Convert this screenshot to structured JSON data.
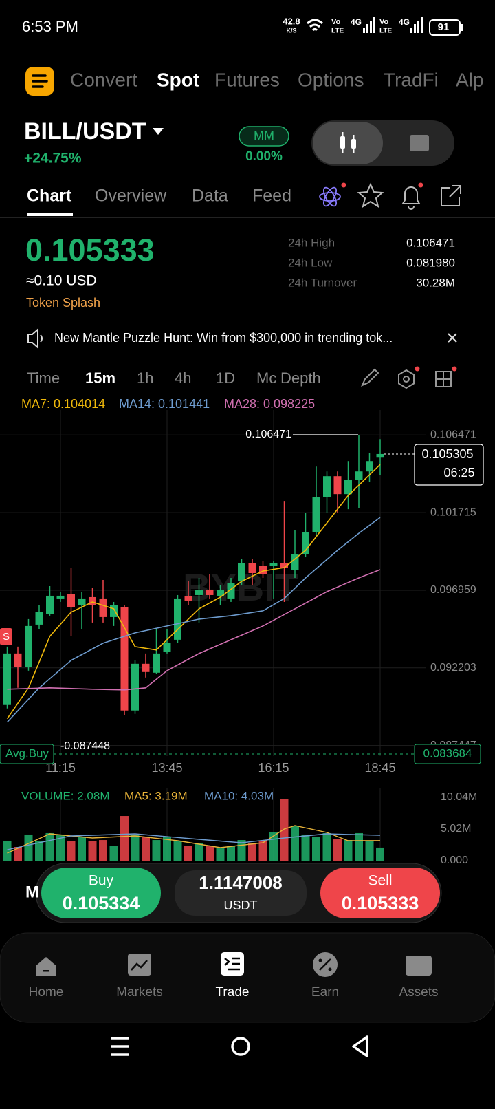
{
  "status_bar": {
    "time": "6:53 PM",
    "net_speed": "42.8",
    "net_unit": "K/S",
    "battery": "91",
    "sims": [
      {
        "vo": "Vo",
        "lte": "LTE",
        "net": "4G"
      },
      {
        "vo": "Vo",
        "lte": "LTE",
        "net": "4G"
      }
    ]
  },
  "top_tabs": [
    "Convert",
    "Spot",
    "Futures",
    "Options",
    "TradFi",
    "Alp"
  ],
  "active_tab": 1,
  "pair": {
    "symbol": "BILL/USDT",
    "change": "+24.75%",
    "badge": "MM",
    "badge_value": "0.00%"
  },
  "sub_tabs": [
    "Chart",
    "Overview",
    "Data",
    "Feed"
  ],
  "price": {
    "last": "0.105333",
    "usd": "≈0.10 USD",
    "tag": "Token Splash"
  },
  "stats": [
    {
      "label": "24h High",
      "value": "0.106471"
    },
    {
      "label": "24h Low",
      "value": "0.081980"
    },
    {
      "label": "24h Turnover",
      "value": "30.28M"
    }
  ],
  "announcement": "New Mantle Puzzle Hunt: Win from $300,000 in trending tok...",
  "intervals": [
    "Time",
    "15m",
    "1h",
    "4h",
    "1D",
    "Mc",
    "Depth"
  ],
  "active_interval": 1,
  "chart_data": {
    "type": "candlestick",
    "up_color": "#20b26c",
    "down_color": "#ef454a",
    "grid": true,
    "ma_legend": [
      {
        "text": "MA7: 0.104014",
        "color": "#f0b90b"
      },
      {
        "text": "MA14: 0.101441",
        "color": "#6e9ccf"
      },
      {
        "text": "MA28: 0.098225",
        "color": "#d06fb0"
      }
    ],
    "categories": [
      null,
      null,
      null,
      null,
      null,
      "11:15",
      null,
      null,
      null,
      null,
      null,
      null,
      null,
      null,
      null,
      "13:45",
      null,
      null,
      null,
      null,
      null,
      null,
      null,
      null,
      null,
      "16:15",
      null,
      null,
      null,
      null,
      null,
      null,
      null,
      null,
      null,
      "18:45"
    ],
    "open": [
      0.08993,
      0.093086,
      0.092245,
      0.094854,
      0.095486,
      0.096454,
      0.096706,
      0.096033,
      0.096538,
      0.096454,
      0.095317,
      0.095907,
      0.089593,
      0.092455,
      0.091908,
      0.09317,
      0.093928,
      0.09658,
      0.096664,
      0.097001,
      0.09658,
      0.096454,
      0.097506,
      0.098643,
      0.098474,
      0.098432,
      0.098643,
      0.098222,
      0.099189,
      0.100536,
      0.102683,
      0.103946,
      0.102851,
      0.103735,
      0.10424,
      0.105082
    ],
    "high": [
      0.093507,
      0.093507,
      0.095191,
      0.096033,
      0.097211,
      0.096874,
      0.098348,
      0.096874,
      0.097085,
      0.09759,
      0.096243,
      0.096033,
      0.092665,
      0.093086,
      0.09456,
      0.09456,
      0.096664,
      0.097506,
      0.097716,
      0.097927,
      0.097295,
      0.097716,
      0.098895,
      0.098895,
      0.098769,
      0.098769,
      0.10243,
      0.100663,
      0.101715,
      0.104535,
      0.10424,
      0.10424,
      0.104872,
      0.106471,
      0.105377,
      0.106218
    ],
    "low": [
      0.089719,
      0.090982,
      0.092034,
      0.09456,
      0.095401,
      0.096243,
      0.094139,
      0.09456,
      0.09498,
      0.09498,
      0.09477,
      0.089298,
      0.089382,
      0.091613,
      0.091824,
      0.093086,
      0.093718,
      0.096033,
      0.09498,
      0.096454,
      0.096033,
      0.096243,
      0.097295,
      0.097295,
      0.097716,
      0.096454,
      0.096243,
      0.097716,
      0.098979,
      0.100241,
      0.101715,
      0.101715,
      0.101925,
      0.102009,
      0.103609,
      0.10403
    ],
    "close": [
      0.093086,
      0.092245,
      0.09477,
      0.095612,
      0.096622,
      0.096622,
      0.095907,
      0.096454,
      0.096033,
      0.095317,
      0.096033,
      0.089593,
      0.092455,
      0.09195,
      0.093086,
      0.093718,
      0.096454,
      0.096327,
      0.096959,
      0.096664,
      0.096959,
      0.09738,
      0.098643,
      0.098011,
      0.097927,
      0.098643,
      0.098306,
      0.099189,
      0.100536,
      0.102683,
      0.103946,
      0.102851,
      0.103735,
      0.10424,
      0.104872,
      0.105305
    ],
    "ma_lines": [
      {
        "color": "#f0b90b",
        "x": [
          0,
          2,
          4,
          6,
          8,
          10,
          12,
          14,
          16,
          18,
          20,
          22,
          24,
          26,
          28,
          30,
          32,
          34,
          35
        ],
        "values": [
          0.089088,
          0.090982,
          0.094139,
          0.095612,
          0.096243,
          0.095822,
          0.093507,
          0.093297,
          0.09456,
          0.095822,
          0.096538,
          0.097506,
          0.098137,
          0.098348,
          0.0994,
          0.101083,
          0.102767,
          0.10403,
          0.104661
        ]
      },
      {
        "color": "#6e9ccf",
        "x": [
          0,
          3,
          6,
          9,
          12,
          15,
          18,
          21,
          24,
          26,
          28,
          31,
          33,
          35
        ],
        "values": [
          0.088877,
          0.090982,
          0.092665,
          0.093718,
          0.094349,
          0.09477,
          0.095191,
          0.095401,
          0.095696,
          0.096454,
          0.097716,
          0.0994,
          0.100452,
          0.10142
        ]
      },
      {
        "color": "#d06fb0",
        "x": [
          0,
          4,
          8,
          11,
          13,
          15,
          18,
          21,
          24,
          27,
          30,
          33,
          35
        ],
        "values": [
          0.090898,
          0.090982,
          0.090898,
          0.090856,
          0.090982,
          0.092034,
          0.093086,
          0.093928,
          0.09477,
          0.095822,
          0.096874,
          0.097716,
          0.098222
        ]
      }
    ],
    "ylim": [
      0.0868,
      0.108
    ],
    "yticks": [
      0.106471,
      0.101715,
      0.096959,
      0.092203,
      0.087447
    ],
    "annotations": {
      "high_label": "0.106471",
      "low_label": "-0.087448",
      "avg_buy": "Avg.Buy",
      "avg_buy_price": "0.083684",
      "signal": "S",
      "last_price": "0.105305",
      "countdown": "06:25",
      "watermark": "BYBIT"
    },
    "volume_legend": [
      {
        "text": "VOLUME: 2.08M",
        "color": "#20b26c"
      },
      {
        "text": "MA5: 3.19M",
        "color": "#e8b339"
      },
      {
        "text": "MA10: 4.03M",
        "color": "#6e9ccf"
      }
    ],
    "volume": [
      3.06,
      2.18,
      4.15,
      3.06,
      4.37,
      4.15,
      3.06,
      3.82,
      3.06,
      3.27,
      2.4,
      7.09,
      4.15,
      3.82,
      3.27,
      3.82,
      3.06,
      2.4,
      2.73,
      2.4,
      1.96,
      2.4,
      3.27,
      2.73,
      3.06,
      4.58,
      9.82,
      5.46,
      4.15,
      3.82,
      4.37,
      3.49,
      3.27,
      4.37,
      3.06,
      2.08
    ],
    "volume_ma_lines": [
      {
        "color": "#e8b339",
        "x": [
          0,
          4,
          8,
          12,
          16,
          20,
          24,
          26,
          27,
          30,
          32,
          35
        ],
        "values": [
          1.2,
          4.26,
          3.6,
          3.93,
          3.16,
          2.07,
          2.84,
          5.02,
          5.57,
          4.47,
          3.16,
          3.19
        ]
      },
      {
        "color": "#6e9ccf",
        "x": [
          0,
          6,
          12,
          18,
          22,
          26,
          30,
          35
        ],
        "values": [
          1.75,
          3.93,
          4.26,
          3.38,
          2.84,
          3.6,
          4.26,
          4.03
        ]
      }
    ],
    "volume_ylim": [
      0,
      10.04
    ],
    "volume_ticks": [
      {
        "value": 10.04,
        "label": "10.04M"
      },
      {
        "value": 5.02,
        "label": "5.02M"
      },
      {
        "value": 0,
        "label": "0.000"
      }
    ]
  },
  "trade_bar": {
    "behind": "M",
    "buy_label": "Buy",
    "buy_price": "0.105334",
    "amount": "1.1147008",
    "amount_unit": "USDT",
    "sell_label": "Sell",
    "sell_price": "0.105333"
  },
  "bottom_nav": [
    "Home",
    "Markets",
    "Trade",
    "Earn",
    "Assets"
  ],
  "active_nav": 2
}
